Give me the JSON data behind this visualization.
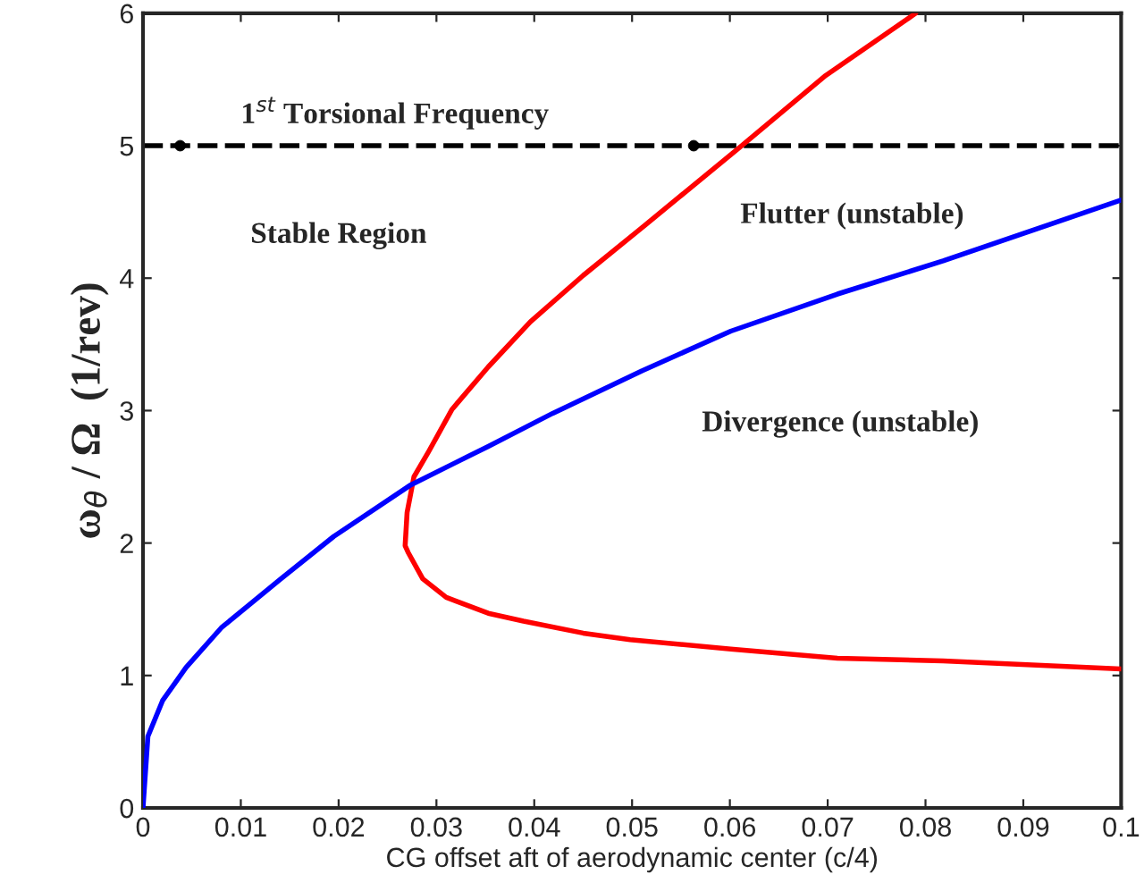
{
  "chart_data": {
    "type": "line",
    "xlabel": "CG offset aft of aerodynamic center (c/4)",
    "ylabel": "ω$_{θ}$ / Ω  (1/rev)",
    "series": [
      {
        "color": "#ff0000",
        "x": [
          0.1,
          0.0818,
          0.071,
          0.0601,
          0.0498,
          0.045,
          0.0389,
          0.0353,
          0.031,
          0.0286,
          0.0271,
          0.0268,
          0.027,
          0.0277,
          0.0292,
          0.0316,
          0.0353,
          0.0396,
          0.045,
          0.051,
          0.0612,
          0.0698,
          0.079
        ],
        "values": [
          1.05,
          1.11,
          1.13,
          1.2,
          1.27,
          1.32,
          1.41,
          1.47,
          1.59,
          1.73,
          1.93,
          1.98,
          2.23,
          2.5,
          2.69,
          3.01,
          3.33,
          3.67,
          4.02,
          4.38,
          5.0,
          5.53,
          6.0
        ]
      },
      {
        "color": "#0000ff",
        "x": [
          0,
          0.0005,
          0.002,
          0.0044,
          0.008,
          0.0141,
          0.0195,
          0.0274,
          0.0353,
          0.0419,
          0.051,
          0.0601,
          0.071,
          0.0818,
          0.1
        ],
        "values": [
          0,
          0.54,
          0.81,
          1.06,
          1.36,
          1.73,
          2.05,
          2.44,
          2.73,
          2.98,
          3.3,
          3.6,
          3.88,
          4.13,
          4.59
        ]
      },
      {
        "type": "scatter",
        "color": "#000000",
        "marker": "circle",
        "x": [
          0.0038,
          0.0563
        ],
        "values": [
          5,
          5
        ]
      }
    ],
    "ref_lines": [
      {
        "axis": "y",
        "value": 5,
        "label": "1$^{st}$ Torsional Frequency",
        "color": "#000000",
        "line_style": "dashed"
      }
    ],
    "annotations": [
      "Stable Region",
      "Flutter (unstable)",
      "Divergence (unstable)"
    ],
    "xlim": [
      0,
      0.1
    ],
    "xticks": [
      0,
      0.01,
      0.02,
      0.03,
      0.04,
      0.05,
      0.06,
      0.07,
      0.08,
      0.09,
      0.1
    ],
    "ylim": [
      0,
      6
    ],
    "yticks": [
      0,
      1,
      2,
      3,
      4,
      5,
      6
    ],
    "grid": false,
    "legend": false
  }
}
